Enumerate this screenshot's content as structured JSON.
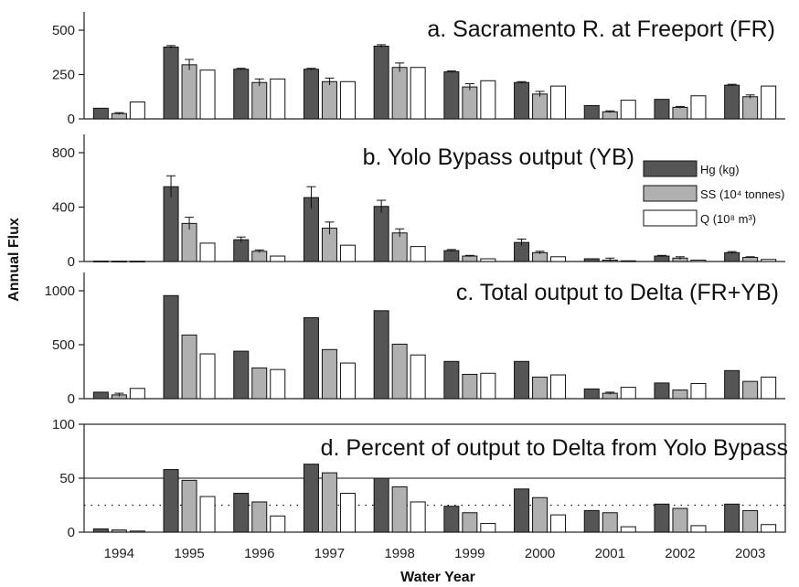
{
  "chart_data": {
    "type": "bar",
    "xlabel": "Water Year",
    "ylabel": "Annual Flux",
    "categories": [
      "1994",
      "1995",
      "1996",
      "1997",
      "1998",
      "1999",
      "2000",
      "2001",
      "2002",
      "2003"
    ],
    "legend": {
      "placement": "right of panel b",
      "entries": [
        {
          "label": "Hg (kg)",
          "color": "#555555"
        },
        {
          "label": "SS (10⁴ tonnes)",
          "color": "#b0b0b0"
        },
        {
          "label": "Q (10⁸ m³)",
          "color": "#ffffff"
        }
      ]
    },
    "panels": [
      {
        "title": "a. Sacramento R. at Freeport (FR)",
        "ylim": [
          0,
          500
        ],
        "yticks": [
          0,
          250,
          500
        ],
        "series": [
          {
            "name": "Hg (kg)",
            "values": [
              60,
              405,
              280,
              280,
              410,
              265,
              205,
              75,
              110,
              190
            ],
            "errors": [
              0,
              8,
              5,
              5,
              8,
              5,
              5,
              0,
              0,
              5
            ]
          },
          {
            "name": "SS (10⁴ tonnes)",
            "values": [
              30,
              305,
              205,
              210,
              290,
              180,
              140,
              40,
              65,
              125
            ],
            "errors": [
              5,
              30,
              20,
              20,
              25,
              18,
              15,
              5,
              5,
              10
            ]
          },
          {
            "name": "Q (10⁸ m³)",
            "values": [
              95,
              275,
              225,
              210,
              290,
              215,
              185,
              105,
              130,
              185
            ],
            "errors": [
              0,
              0,
              0,
              0,
              0,
              0,
              0,
              0,
              0,
              0
            ]
          }
        ]
      },
      {
        "title": "b. Yolo Bypass output (YB)",
        "ylim": [
          0,
          800
        ],
        "yticks": [
          0,
          400,
          800
        ],
        "series": [
          {
            "name": "Hg (kg)",
            "values": [
              3,
              550,
              160,
              470,
              405,
              80,
              140,
              20,
              40,
              65
            ],
            "errors": [
              0,
              80,
              20,
              80,
              45,
              8,
              25,
              0,
              5,
              8
            ]
          },
          {
            "name": "SS (10⁴ tonnes)",
            "values": [
              2,
              280,
              75,
              245,
              210,
              40,
              65,
              10,
              25,
              30
            ],
            "errors": [
              0,
              45,
              10,
              45,
              30,
              5,
              10,
              15,
              10,
              5
            ]
          },
          {
            "name": "Q (10⁸ m³)",
            "values": [
              2,
              135,
              40,
              120,
              110,
              20,
              35,
              5,
              10,
              15
            ],
            "errors": [
              0,
              0,
              0,
              0,
              0,
              0,
              0,
              0,
              0,
              0
            ]
          }
        ]
      },
      {
        "title": "c. Total output to Delta (FR+YB)",
        "ylim": [
          0,
          1000
        ],
        "yticks": [
          0,
          500,
          1000
        ],
        "series": [
          {
            "name": "Hg (kg)",
            "values": [
              60,
              955,
              440,
              750,
              815,
              345,
              345,
              90,
              145,
              260
            ],
            "errors": [
              0,
              0,
              0,
              0,
              0,
              0,
              0,
              0,
              0,
              0
            ]
          },
          {
            "name": "SS (10⁴ tonnes)",
            "values": [
              35,
              590,
              285,
              455,
              505,
              225,
              200,
              50,
              80,
              160
            ],
            "errors": [
              15,
              0,
              0,
              0,
              0,
              0,
              0,
              10,
              0,
              0
            ]
          },
          {
            "name": "Q (10⁸ m³)",
            "values": [
              95,
              415,
              270,
              330,
              405,
              235,
              220,
              105,
              140,
              200
            ],
            "errors": [
              0,
              0,
              0,
              0,
              0,
              0,
              0,
              0,
              0,
              0
            ]
          }
        ]
      },
      {
        "title": "d. Percent of output to Delta from Yolo Bypass",
        "ylim": [
          0,
          100
        ],
        "yticks": [
          0,
          50,
          100
        ],
        "reference_lines": [
          {
            "value": 50,
            "style": "solid"
          },
          {
            "value": 25,
            "style": "dotted"
          }
        ],
        "series": [
          {
            "name": "Hg (kg)",
            "values": [
              3,
              58,
              36,
              63,
              50,
              24,
              40,
              20,
              26,
              26
            ],
            "errors": [
              0,
              0,
              0,
              0,
              0,
              0,
              0,
              0,
              0,
              0
            ]
          },
          {
            "name": "SS (10⁴ tonnes)",
            "values": [
              2,
              48,
              28,
              55,
              42,
              18,
              32,
              18,
              22,
              20
            ],
            "errors": [
              0,
              0,
              0,
              0,
              0,
              0,
              0,
              0,
              0,
              0
            ]
          },
          {
            "name": "Q (10⁸ m³)",
            "values": [
              1,
              33,
              15,
              36,
              28,
              8,
              16,
              5,
              6,
              7
            ],
            "errors": [
              0,
              0,
              0,
              0,
              0,
              0,
              0,
              0,
              0,
              0
            ]
          }
        ]
      }
    ]
  }
}
